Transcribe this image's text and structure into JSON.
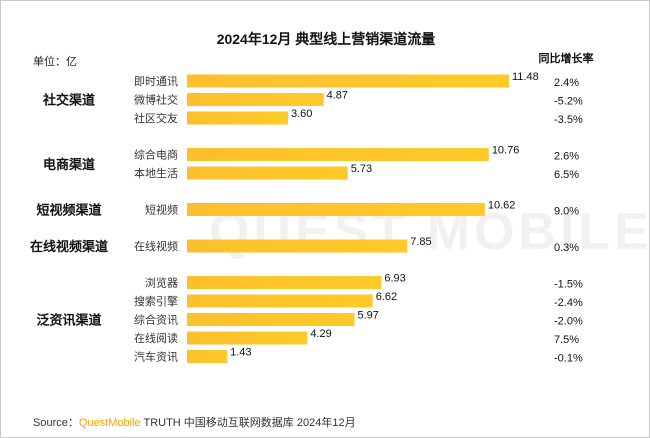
{
  "chart_data": {
    "type": "bar",
    "orientation": "horizontal",
    "title": "2024年12月 典型线上营销渠道流量",
    "unit_label": "单位：亿",
    "yoy_header": "同比增长率",
    "xlim": [
      0,
      12
    ],
    "grid": false,
    "bar_color": "#fbc02d",
    "groups": [
      {
        "name": "社交渠道",
        "items": [
          {
            "label": "即时通讯",
            "value": 11.48,
            "value_text": "11.48",
            "yoy": "2.4%"
          },
          {
            "label": "微博社交",
            "value": 4.87,
            "value_text": "4.87",
            "yoy": "-5.2%"
          },
          {
            "label": "社区交友",
            "value": 3.6,
            "value_text": "3.60",
            "yoy": "-3.5%"
          }
        ]
      },
      {
        "name": "电商渠道",
        "items": [
          {
            "label": "综合电商",
            "value": 10.76,
            "value_text": "10.76",
            "yoy": "2.6%"
          },
          {
            "label": "本地生活",
            "value": 5.73,
            "value_text": "5.73",
            "yoy": "6.5%"
          }
        ]
      },
      {
        "name": "短视频渠道",
        "items": [
          {
            "label": "短视频",
            "value": 10.62,
            "value_text": "10.62",
            "yoy": "9.0%"
          }
        ]
      },
      {
        "name": "在线视频渠道",
        "items": [
          {
            "label": "在线视频",
            "value": 7.85,
            "value_text": "7.85",
            "yoy": "0.3%"
          }
        ]
      },
      {
        "name": "泛资讯渠道",
        "items": [
          {
            "label": "浏览器",
            "value": 6.93,
            "value_text": "6.93",
            "yoy": "-1.5%"
          },
          {
            "label": "搜索引擎",
            "value": 6.62,
            "value_text": "6.62",
            "yoy": "-2.4%"
          },
          {
            "label": "综合资讯",
            "value": 5.97,
            "value_text": "5.97",
            "yoy": "-2.0%"
          },
          {
            "label": "在线阅读",
            "value": 4.29,
            "value_text": "4.29",
            "yoy": "7.5%"
          },
          {
            "label": "汽车资讯",
            "value": 1.43,
            "value_text": "1.43",
            "yoy": "-0.1%"
          }
        ]
      }
    ]
  },
  "source": {
    "prefix": "Source：",
    "brand": "QuestMobile",
    "suffix": " TRUTH 中国移动互联网数据库 2024年12月"
  },
  "watermark": "QUEST MOBILE"
}
